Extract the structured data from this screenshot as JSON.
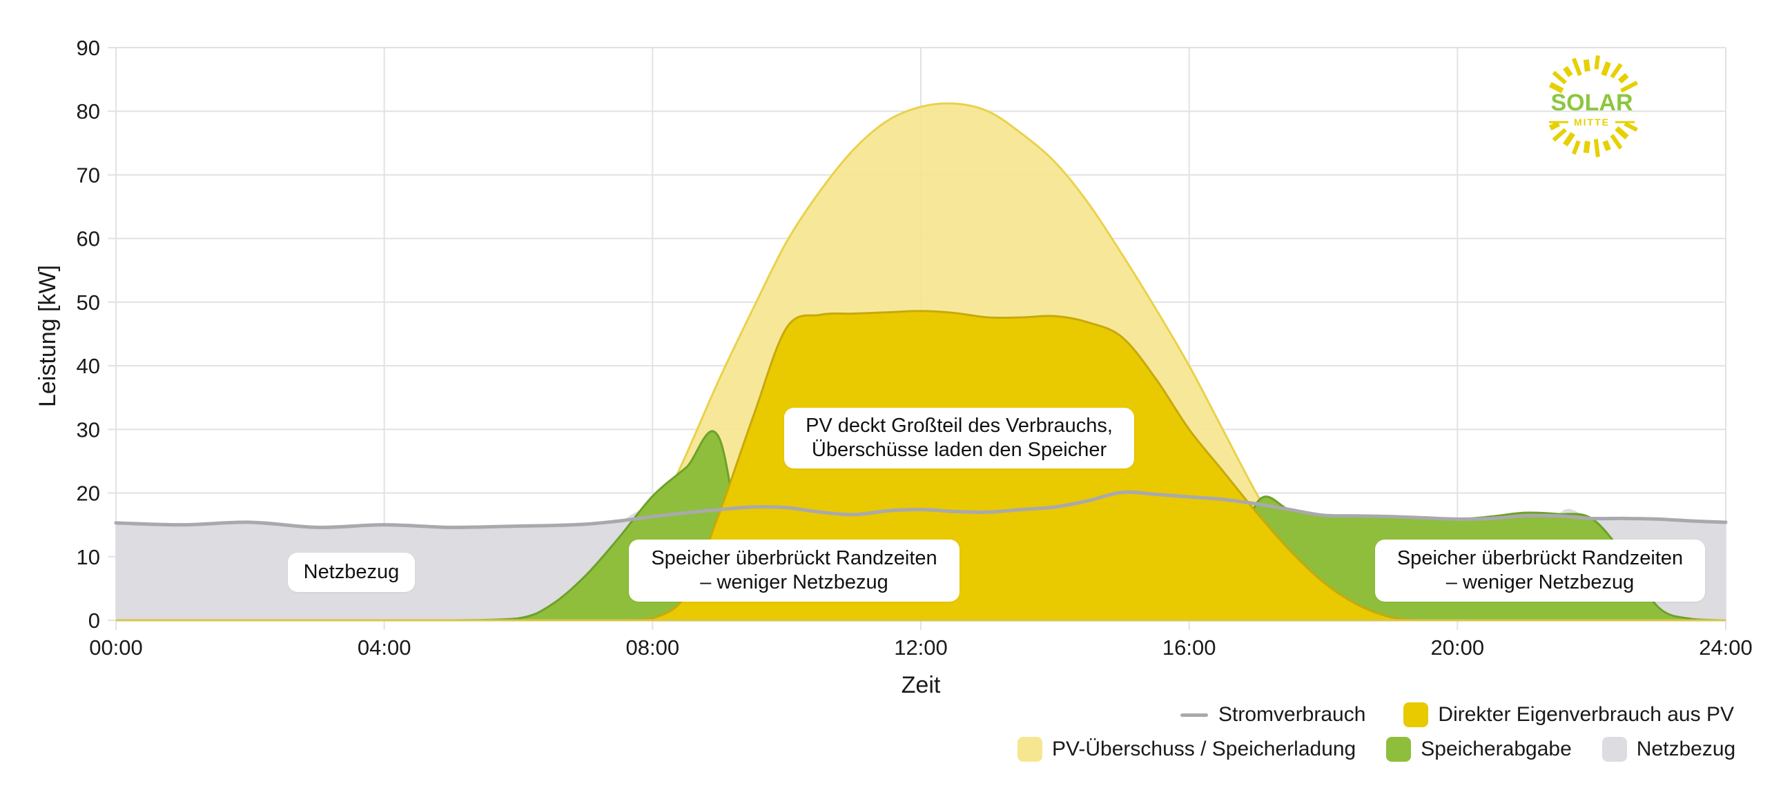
{
  "chart_data": {
    "type": "area",
    "title": "",
    "xlabel": "Zeit",
    "ylabel": "Leistung [kW]",
    "xlim": [
      0,
      24
    ],
    "ylim": [
      0,
      90
    ],
    "grid": true,
    "legend_position": "bottom-right",
    "x_ticks": [
      "00:00",
      "04:00",
      "08:00",
      "12:00",
      "16:00",
      "20:00",
      "24:00"
    ],
    "y_ticks": [
      0,
      10,
      20,
      30,
      40,
      50,
      60,
      70,
      80,
      90
    ],
    "x": [
      0,
      1,
      2,
      3,
      4,
      5,
      6,
      6.5,
      7,
      7.5,
      8,
      8.5,
      9,
      9.5,
      10,
      10.5,
      11,
      11.5,
      12,
      12.5,
      13,
      13.5,
      14,
      14.5,
      15,
      15.5,
      16,
      16.5,
      17,
      17.5,
      18,
      18.5,
      19,
      19.5,
      20,
      20.5,
      21,
      21.5,
      22,
      22.5,
      23,
      23.5,
      24
    ],
    "series": [
      {
        "name": "Stromverbrauch",
        "kind": "line",
        "color": "#A9A9AD",
        "values": [
          15.3,
          15.0,
          15.4,
          14.6,
          15.0,
          14.6,
          14.8,
          14.9,
          15.1,
          15.6,
          16.3,
          16.9,
          17.4,
          17.8,
          17.7,
          17.0,
          16.6,
          17.2,
          17.4,
          17.1,
          17.0,
          17.4,
          17.8,
          18.8,
          20.1,
          19.8,
          19.4,
          19.0,
          18.3,
          17.4,
          16.5,
          16.4,
          16.3,
          16.1,
          15.9,
          16.0,
          16.4,
          16.4,
          16.0,
          16.0,
          15.9,
          15.6,
          15.4
        ]
      },
      {
        "name": "PV-Überschuss / Speicherladung",
        "kind": "area",
        "color": "#F6E690",
        "edge": "#EAD14A",
        "values": [
          0,
          0,
          0,
          0,
          0,
          0,
          0,
          0,
          0,
          3.0,
          14.5,
          26.0,
          38.0,
          49.0,
          59.5,
          67.5,
          74.0,
          78.5,
          80.7,
          81.2,
          80.0,
          76.5,
          72.0,
          65.5,
          57.5,
          49.0,
          40.0,
          30.0,
          20.0,
          11.0,
          4.5,
          1.0,
          0,
          0,
          0,
          0,
          0,
          0,
          0,
          0,
          0,
          0,
          0
        ]
      },
      {
        "name": "Direkter Eigenverbrauch aus PV",
        "kind": "area",
        "color": "#E9C900",
        "edge": "#C8A90A",
        "values": [
          0,
          0,
          0,
          0,
          0,
          0,
          0,
          0,
          0,
          0,
          0.3,
          4.0,
          17.0,
          32.0,
          46.0,
          48.0,
          48.2,
          48.4,
          48.6,
          48.3,
          47.6,
          47.6,
          47.8,
          46.8,
          44.5,
          38.0,
          30.0,
          23.5,
          17.0,
          11.0,
          6.0,
          2.5,
          0.5,
          0,
          0,
          0,
          0,
          0,
          0,
          0,
          0,
          0,
          0
        ]
      },
      {
        "name": "Speicherabgabe",
        "kind": "area",
        "color": "#8EBE3C",
        "edge": "#6EA128",
        "values": [
          0,
          0,
          0,
          0,
          0,
          0,
          0.3,
          2.5,
          7.0,
          13.0,
          19.5,
          24.0,
          28.5,
          0,
          0,
          0,
          0,
          0,
          0,
          0,
          0,
          0,
          0,
          0,
          0,
          0,
          0,
          0,
          18.3,
          17.4,
          16.5,
          16.4,
          16.3,
          16.1,
          15.9,
          16.3,
          16.9,
          16.7,
          16.0,
          10.0,
          2.0,
          0.2,
          0
        ]
      },
      {
        "name": "Netzbezug",
        "kind": "area",
        "color": "#DCDCE1",
        "values": [
          15.3,
          15.0,
          15.4,
          14.6,
          15.0,
          14.6,
          14.8,
          14.9,
          15.1,
          15.6,
          16.3,
          0,
          0,
          0,
          0,
          0,
          0,
          0,
          0,
          0,
          0,
          0,
          0,
          0,
          0,
          0,
          0,
          0,
          0,
          0,
          0,
          0,
          0,
          0,
          0,
          0,
          0,
          16.4,
          16.0,
          16.0,
          15.9,
          15.6,
          15.4
        ]
      }
    ],
    "annotations": [
      {
        "text": "Netzbezug",
        "x": 3.05,
        "y": 7.5
      },
      {
        "text": "Speicher überbrückt Randzeiten – weniger Netzbezug",
        "x": 8.75,
        "y": 7.5
      },
      {
        "text": "PV deckt Großteil des Verbrauchs, Überschüsse laden den Speicher",
        "x": 12.0,
        "y": 28.5
      },
      {
        "text": "Speicher überbrückt Randzeiten – weniger Netzbezug",
        "x": 21.0,
        "y": 7.5
      }
    ]
  },
  "axes": {
    "x_title": "Zeit",
    "y_title": "Leistung [kW]",
    "x_tick_labels": [
      "00:00",
      "04:00",
      "08:00",
      "12:00",
      "16:00",
      "20:00",
      "24:00"
    ],
    "y_tick_labels": [
      "0",
      "10",
      "20",
      "30",
      "40",
      "50",
      "60",
      "70",
      "80",
      "90"
    ]
  },
  "annotations": {
    "grid": {
      "line1": "Netzbezug"
    },
    "morning": {
      "line1": "Speicher überbrückt Randzeiten",
      "line2": "– weniger Netzbezug"
    },
    "midday": {
      "line1": "PV deckt Großteil des Verbrauchs,",
      "line2": "Überschüsse laden den Speicher"
    },
    "evening": {
      "line1": "Speicher überbrückt Randzeiten",
      "line2": "– weniger Netzbezug"
    }
  },
  "legend": {
    "consumption": {
      "label": "Stromverbrauch",
      "color": "#A9A9AD"
    },
    "direct": {
      "label": "Direkter Eigenverbrauch aus PV",
      "color": "#E9C900"
    },
    "surplus": {
      "label": "PV-Überschuss / Speicherladung",
      "color": "#F6E690"
    },
    "battery": {
      "label": "Speicherabgabe",
      "color": "#8EBE3C"
    },
    "grid": {
      "label": "Netzbezug",
      "color": "#DCDCE1"
    }
  },
  "logo": {
    "word": "SOLAR",
    "sub": "MITTE",
    "word_color": "#8CC63F",
    "ray_color": "#E6D000"
  }
}
